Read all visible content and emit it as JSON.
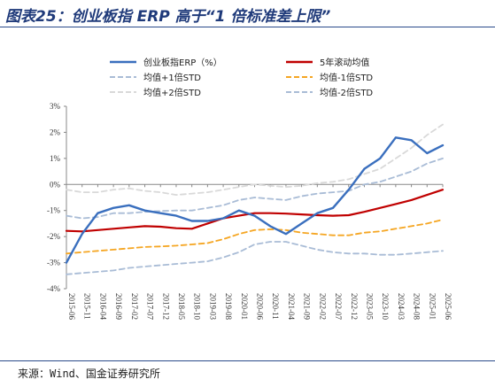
{
  "title": "图表25：创业板指 ERP 高于“1 倍标准差上限”",
  "source": "来源：Wind、国金证券研究所",
  "chart_data": {
    "type": "line",
    "title": "图表25：创业板指 ERP 高于“1 倍标准差上限”",
    "xlabel": "",
    "ylabel": "",
    "ylim": [
      -4,
      3
    ],
    "yticks": [
      "3%",
      "2%",
      "1%",
      "0%",
      "-1%",
      "-2%",
      "-3%",
      "-4%"
    ],
    "ytick_values": [
      3,
      2,
      1,
      0,
      -1,
      -2,
      -3,
      -4
    ],
    "unit": "%",
    "grid": false,
    "legend_position": "top",
    "x": [
      "2015-06",
      "2015-11",
      "2016-04",
      "2016-09",
      "2017-02",
      "2017-07",
      "2017-12",
      "2018-05",
      "2018-10",
      "2019-03",
      "2019-08",
      "2020-01",
      "2020-06",
      "2020-11",
      "2021-04",
      "2021-09",
      "2022-02",
      "2022-07",
      "2022-12",
      "2023-05",
      "2023-10",
      "2024-03",
      "2024-08",
      "2025-01",
      "2025-06"
    ],
    "series": [
      {
        "name": "创业板指ERP（%）",
        "color": "#3a6fbe",
        "style": "solid",
        "values": [
          -3.0,
          -1.9,
          -1.1,
          -0.9,
          -0.8,
          -1.0,
          -1.1,
          -1.2,
          -1.4,
          -1.4,
          -1.3,
          -1.0,
          -1.2,
          -1.6,
          -1.9,
          -1.5,
          -1.1,
          -0.9,
          -0.2,
          0.6,
          1.0,
          1.8,
          1.7,
          1.2,
          1.5
        ]
      },
      {
        "name": "5年滚动均值",
        "color": "#c00000",
        "style": "solid",
        "values": [
          -1.78,
          -1.8,
          -1.75,
          -1.7,
          -1.65,
          -1.6,
          -1.62,
          -1.68,
          -1.7,
          -1.5,
          -1.3,
          -1.2,
          -1.1,
          -1.1,
          -1.12,
          -1.15,
          -1.18,
          -1.2,
          -1.18,
          -1.05,
          -0.9,
          -0.75,
          -0.6,
          -0.4,
          -0.2
        ]
      },
      {
        "name": "均值+1倍STD",
        "color": "#a9bcd6",
        "style": "dashed",
        "values": [
          -1.2,
          -1.3,
          -1.25,
          -1.1,
          -1.1,
          -1.05,
          -1.02,
          -1.0,
          -1.0,
          -0.9,
          -0.8,
          -0.6,
          -0.5,
          -0.55,
          -0.6,
          -0.45,
          -0.35,
          -0.3,
          -0.25,
          0.0,
          0.1,
          0.3,
          0.5,
          0.8,
          1.0
        ]
      },
      {
        "name": "均值-1倍STD",
        "color": "#f5a623",
        "style": "dashed",
        "values": [
          -2.65,
          -2.6,
          -2.55,
          -2.5,
          -2.45,
          -2.4,
          -2.38,
          -2.35,
          -2.3,
          -2.25,
          -2.1,
          -1.9,
          -1.75,
          -1.72,
          -1.75,
          -1.85,
          -1.9,
          -1.95,
          -1.95,
          -1.85,
          -1.8,
          -1.7,
          -1.6,
          -1.5,
          -1.35
        ]
      },
      {
        "name": "均值+2倍STD",
        "color": "#d9d9d9",
        "style": "dashed",
        "values": [
          -0.2,
          -0.3,
          -0.3,
          -0.2,
          -0.15,
          -0.25,
          -0.3,
          -0.4,
          -0.35,
          -0.3,
          -0.2,
          -0.1,
          0.0,
          -0.05,
          -0.1,
          -0.05,
          0.05,
          0.1,
          0.2,
          0.4,
          0.6,
          1.0,
          1.4,
          1.9,
          2.3
        ]
      },
      {
        "name": "均值-2倍STD",
        "color": "#a9bcd6",
        "style": "dashed",
        "values": [
          -3.45,
          -3.4,
          -3.35,
          -3.3,
          -3.2,
          -3.15,
          -3.1,
          -3.05,
          -3.0,
          -2.95,
          -2.8,
          -2.6,
          -2.3,
          -2.2,
          -2.2,
          -2.35,
          -2.5,
          -2.6,
          -2.65,
          -2.65,
          -2.7,
          -2.7,
          -2.65,
          -2.6,
          -2.55
        ]
      }
    ]
  }
}
